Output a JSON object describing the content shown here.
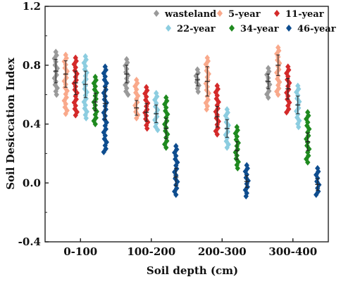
{
  "chart_data": {
    "type": "scatter",
    "title": "",
    "xlabel": "Soil depth (cm)",
    "ylabel": "Soil Desiccation Index",
    "categories": [
      "0-100",
      "100-200",
      "200-300",
      "300-400"
    ],
    "ylim": [
      -0.4,
      1.2
    ],
    "yticks": [
      "-0.4",
      "0.0",
      "0.4",
      "0.8",
      "1.2"
    ],
    "grid": false,
    "legend_position": "top-right",
    "series": [
      {
        "name": "wasteland",
        "color": "#9a9a9a",
        "marker": "diamond",
        "points": [
          {
            "category": "0-100",
            "min": 0.6,
            "max": 0.89,
            "mean": 0.76,
            "err": 0.08
          },
          {
            "category": "100-200",
            "min": 0.6,
            "max": 0.84,
            "mean": 0.74,
            "err": 0.06
          },
          {
            "category": "200-300",
            "min": 0.62,
            "max": 0.77,
            "mean": 0.7,
            "err": 0.04
          },
          {
            "category": "300-400",
            "min": 0.58,
            "max": 0.78,
            "mean": 0.69,
            "err": 0.05
          }
        ]
      },
      {
        "name": "5-year",
        "color": "#f9a98b",
        "marker": "diamond",
        "points": [
          {
            "category": "0-100",
            "min": 0.47,
            "max": 0.87,
            "mean": 0.74,
            "err": 0.09
          },
          {
            "category": "100-200",
            "min": 0.44,
            "max": 0.7,
            "mean": 0.51,
            "err": 0.05
          },
          {
            "category": "200-300",
            "min": 0.5,
            "max": 0.85,
            "mean": 0.69,
            "err": 0.1
          },
          {
            "category": "300-400",
            "min": 0.6,
            "max": 0.92,
            "mean": 0.8,
            "err": 0.07
          }
        ]
      },
      {
        "name": "11-year",
        "color": "#d42a2a",
        "marker": "diamond",
        "points": [
          {
            "category": "0-100",
            "min": 0.46,
            "max": 0.85,
            "mean": 0.68,
            "err": 0.08
          },
          {
            "category": "100-200",
            "min": 0.37,
            "max": 0.65,
            "mean": 0.48,
            "err": 0.06
          },
          {
            "category": "200-300",
            "min": 0.33,
            "max": 0.66,
            "mean": 0.45,
            "err": 0.07
          },
          {
            "category": "300-400",
            "min": 0.48,
            "max": 0.79,
            "mean": 0.64,
            "err": 0.07
          }
        ]
      },
      {
        "name": "22-year",
        "color": "#8ccde0",
        "marker": "diamond",
        "points": [
          {
            "category": "0-100",
            "min": 0.44,
            "max": 0.86,
            "mean": 0.67,
            "err": 0.09
          },
          {
            "category": "100-200",
            "min": 0.36,
            "max": 0.61,
            "mean": 0.47,
            "err": 0.06
          },
          {
            "category": "200-300",
            "min": 0.24,
            "max": 0.5,
            "mean": 0.37,
            "err": 0.06
          },
          {
            "category": "300-400",
            "min": 0.38,
            "max": 0.66,
            "mean": 0.53,
            "err": 0.06
          }
        ]
      },
      {
        "name": "34-year",
        "color": "#1f8a1f",
        "marker": "diamond",
        "points": [
          {
            "category": "0-100",
            "min": 0.4,
            "max": 0.72,
            "mean": 0.55,
            "err": 0.06
          },
          {
            "category": "100-200",
            "min": 0.24,
            "max": 0.58,
            "mean": 0.37,
            "err": 0.07
          },
          {
            "category": "200-300",
            "min": 0.1,
            "max": 0.38,
            "mean": 0.22,
            "err": 0.06
          },
          {
            "category": "300-400",
            "min": 0.14,
            "max": 0.48,
            "mean": 0.28,
            "err": 0.06
          }
        ]
      },
      {
        "name": "46-year",
        "color": "#0e4d8f",
        "marker": "diamond",
        "points": [
          {
            "category": "0-100",
            "min": 0.21,
            "max": 0.79,
            "mean": 0.54,
            "err": 0.11
          },
          {
            "category": "100-200",
            "min": -0.08,
            "max": 0.25,
            "mean": 0.04,
            "err": 0.06
          },
          {
            "category": "200-300",
            "min": -0.09,
            "max": 0.12,
            "mean": 0.01,
            "err": 0.04
          },
          {
            "category": "300-400",
            "min": -0.08,
            "max": 0.1,
            "mean": -0.01,
            "err": 0.04
          }
        ]
      }
    ]
  }
}
